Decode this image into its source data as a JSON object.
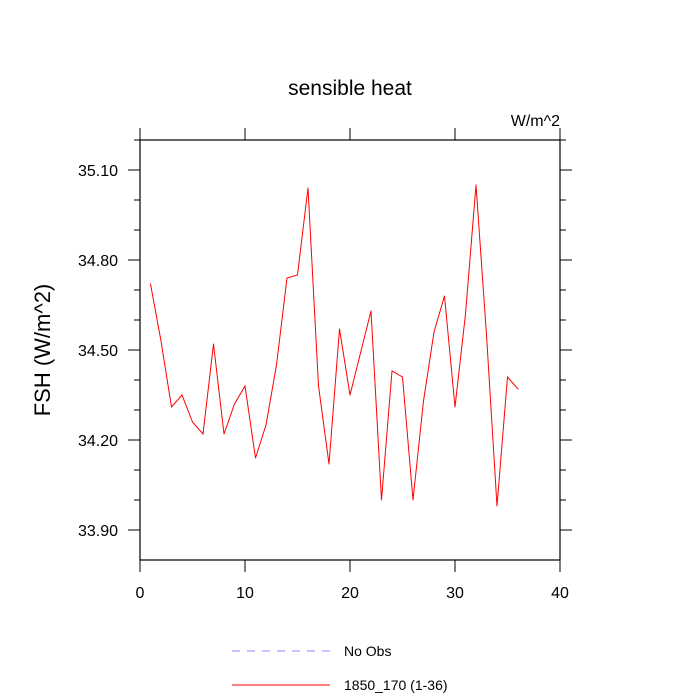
{
  "chart_data": {
    "type": "line",
    "title": "sensible heat",
    "units": "W/m^2",
    "ylabel": "FSH  (W/m^2)",
    "xlabel": "",
    "xlim": [
      0,
      40
    ],
    "ylim": [
      33.8,
      35.2
    ],
    "x_ticks": [
      0,
      10,
      20,
      30,
      40
    ],
    "x_tick_labels": [
      "0",
      "10",
      "20",
      "30",
      "40"
    ],
    "y_ticks": [
      33.9,
      34.2,
      34.5,
      34.8,
      35.1
    ],
    "y_tick_labels": [
      "33.90",
      "34.20",
      "34.50",
      "34.80",
      "35.10"
    ],
    "grid": false,
    "legend_position": "bottom",
    "series": [
      {
        "name": "1850_170 (1-36)",
        "color": "#ff0000",
        "style": "solid",
        "x": [
          1,
          2,
          3,
          4,
          5,
          6,
          7,
          8,
          9,
          10,
          11,
          12,
          13,
          14,
          15,
          16,
          17,
          18,
          19,
          20,
          21,
          22,
          23,
          24,
          25,
          26,
          27,
          28,
          29,
          30,
          31,
          32,
          33,
          34,
          35,
          36
        ],
        "values": [
          34.72,
          34.53,
          34.31,
          34.35,
          34.26,
          34.22,
          34.52,
          34.22,
          34.32,
          34.38,
          34.14,
          34.25,
          34.45,
          34.74,
          34.75,
          35.04,
          34.38,
          34.12,
          34.57,
          34.35,
          34.49,
          34.63,
          34.0,
          34.43,
          34.41,
          34.0,
          34.33,
          34.56,
          34.68,
          34.31,
          34.62,
          35.05,
          34.55,
          33.98,
          34.41,
          34.37
        ]
      }
    ],
    "legend": [
      {
        "label": "No Obs",
        "color": "#8888ff",
        "style": "dashed"
      },
      {
        "label": "1850_170 (1-36)",
        "color": "#ff0000",
        "style": "solid"
      }
    ]
  }
}
